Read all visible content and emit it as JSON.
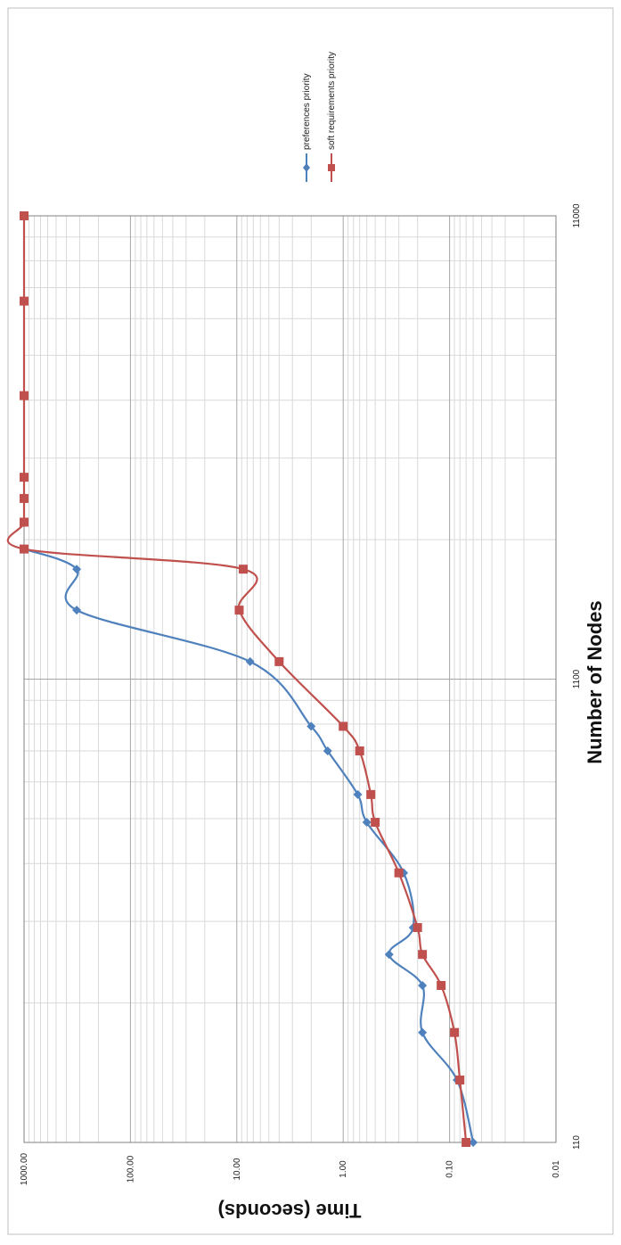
{
  "chart_data": {
    "type": "line",
    "orientation": "rotated-90-ccw",
    "xlabel": "Number of Nodes",
    "ylabel": "Time (seconds)",
    "x_scale": "log",
    "y_scale": "log",
    "xlim": [
      110,
      11000
    ],
    "ylim": [
      0.01,
      1000
    ],
    "x_ticks": [
      110,
      1100,
      11000
    ],
    "x_tick_labels": [
      "110",
      "1100",
      "11000"
    ],
    "y_ticks": [
      0.01,
      0.1,
      1,
      10,
      100,
      1000
    ],
    "y_tick_labels": [
      "0.01",
      "0.10",
      "1.00",
      "10.00",
      "100.00",
      "1000.00"
    ],
    "grid": true,
    "legend_position": "top-right",
    "series": [
      {
        "name": "preferences priority",
        "color": "#4f81bd",
        "marker": "diamond",
        "points": [
          [
            110,
            0.06
          ],
          [
            150,
            0.085
          ],
          [
            190,
            0.18
          ],
          [
            240,
            0.18
          ],
          [
            280,
            0.37
          ],
          [
            320,
            0.22
          ],
          [
            420,
            0.27
          ],
          [
            540,
            0.6
          ],
          [
            620,
            0.73
          ],
          [
            770,
            1.4
          ],
          [
            870,
            2.0
          ],
          [
            1200,
            7.5
          ],
          [
            1550,
            320
          ],
          [
            1900,
            320
          ],
          [
            2100,
            1000
          ]
        ]
      },
      {
        "name": "soft requirements priority",
        "color": "#c0504d",
        "marker": "square",
        "points": [
          [
            110,
            0.07
          ],
          [
            150,
            0.08
          ],
          [
            190,
            0.09
          ],
          [
            240,
            0.12
          ],
          [
            280,
            0.18
          ],
          [
            320,
            0.2
          ],
          [
            420,
            0.3
          ],
          [
            540,
            0.5
          ],
          [
            620,
            0.55
          ],
          [
            770,
            0.7
          ],
          [
            870,
            1.0
          ],
          [
            1200,
            4.0
          ],
          [
            1550,
            9.5
          ],
          [
            1900,
            8.7
          ],
          [
            2100,
            1000
          ],
          [
            2400,
            1000
          ],
          [
            2700,
            1000
          ],
          [
            3000,
            1000
          ],
          [
            4500,
            1000
          ],
          [
            7200,
            1000
          ],
          [
            11000,
            1000
          ]
        ]
      }
    ]
  }
}
